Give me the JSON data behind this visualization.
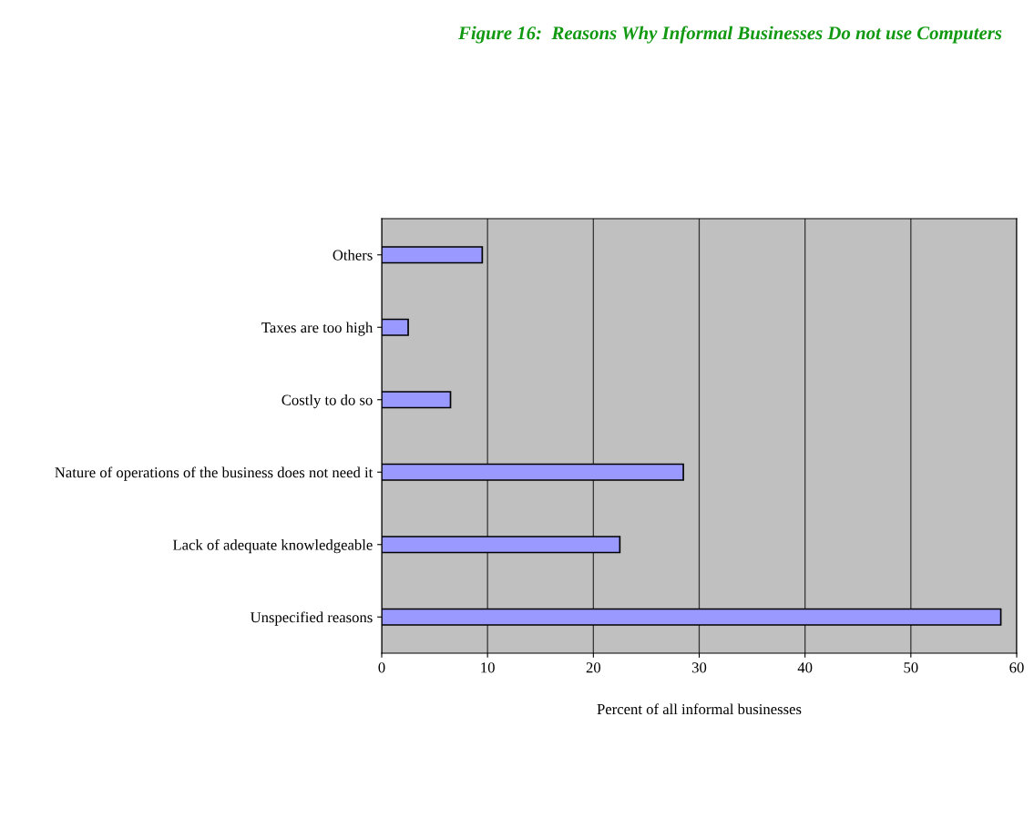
{
  "chart_data": {
    "type": "bar",
    "orientation": "horizontal",
    "title": "Figure 16:  Reasons Why Informal Businesses Do not use Computers",
    "xlabel": "Percent of all informal businesses",
    "categories": [
      "Others",
      "Taxes are too high",
      "Costly to do so",
      "Nature of operations of the business does not need it",
      "Lack of adequate knowledgeable",
      "Unspecified reasons"
    ],
    "values": [
      9.5,
      2.5,
      6.5,
      28.5,
      22.5,
      58.5
    ],
    "color": "#9999ff",
    "xlim": [
      0,
      60
    ],
    "xticks": [
      0,
      10,
      20,
      30,
      40,
      50,
      60
    ],
    "grid": "x",
    "legend": false
  }
}
